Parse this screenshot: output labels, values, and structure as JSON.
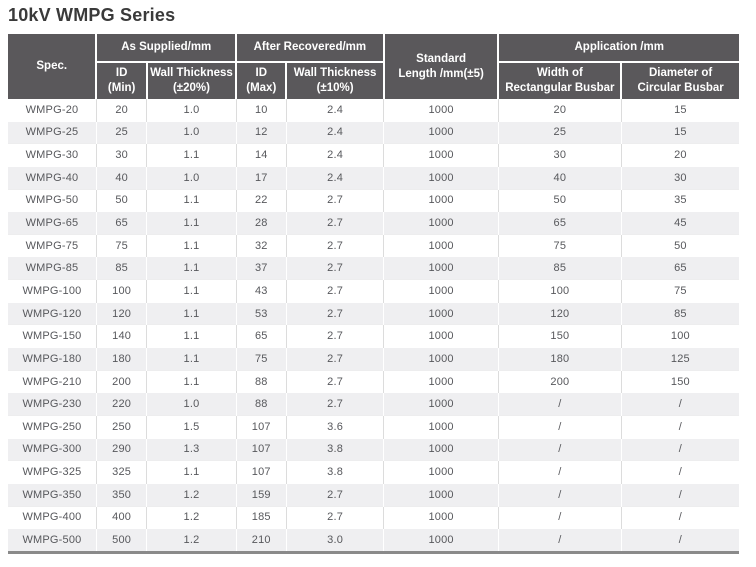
{
  "page": {
    "title": "10kV WMPG Series"
  },
  "colors": {
    "header_bg": "#5a585b",
    "header_text": "#ffffff",
    "row_alt_bg": "#efeff1",
    "row_bg": "#ffffff",
    "cell_text": "#57585c",
    "title_text": "#3a3a3a",
    "bottom_border": "#8a8a8a"
  },
  "table": {
    "header": {
      "spec": "Spec.",
      "as_supplied_group": "As Supplied/mm",
      "after_recovered_group": "After Recovered/mm",
      "standard_length": "Standard\nLength /mm(±5)",
      "application_group": "Application /mm",
      "id_min": "ID\n(Min)",
      "wall_thickness_20": "Wall Thickness\n(±20%)",
      "id_max": "ID\n(Max)",
      "wall_thickness_10": "Wall Thickness\n(±10%)",
      "width_rect_busbar": "Width of\nRectangular Busbar",
      "dia_circ_busbar": "Diameter of\nCircular Busbar"
    },
    "rows": [
      [
        "WMPG-20",
        "20",
        "1.0",
        "10",
        "2.4",
        "1000",
        "20",
        "15"
      ],
      [
        "WMPG-25",
        "25",
        "1.0",
        "12",
        "2.4",
        "1000",
        "25",
        "15"
      ],
      [
        "WMPG-30",
        "30",
        "1.1",
        "14",
        "2.4",
        "1000",
        "30",
        "20"
      ],
      [
        "WMPG-40",
        "40",
        "1.0",
        "17",
        "2.4",
        "1000",
        "40",
        "30"
      ],
      [
        "WMPG-50",
        "50",
        "1.1",
        "22",
        "2.7",
        "1000",
        "50",
        "35"
      ],
      [
        "WMPG-65",
        "65",
        "1.1",
        "28",
        "2.7",
        "1000",
        "65",
        "45"
      ],
      [
        "WMPG-75",
        "75",
        "1.1",
        "32",
        "2.7",
        "1000",
        "75",
        "50"
      ],
      [
        "WMPG-85",
        "85",
        "1.1",
        "37",
        "2.7",
        "1000",
        "85",
        "65"
      ],
      [
        "WMPG-100",
        "100",
        "1.1",
        "43",
        "2.7",
        "1000",
        "100",
        "75"
      ],
      [
        "WMPG-120",
        "120",
        "1.1",
        "53",
        "2.7",
        "1000",
        "120",
        "85"
      ],
      [
        "WMPG-150",
        "140",
        "1.1",
        "65",
        "2.7",
        "1000",
        "150",
        "100"
      ],
      [
        "WMPG-180",
        "180",
        "1.1",
        "75",
        "2.7",
        "1000",
        "180",
        "125"
      ],
      [
        "WMPG-210",
        "200",
        "1.1",
        "88",
        "2.7",
        "1000",
        "200",
        "150"
      ],
      [
        "WMPG-230",
        "220",
        "1.0",
        "88",
        "2.7",
        "1000",
        "/",
        "/"
      ],
      [
        "WMPG-250",
        "250",
        "1.5",
        "107",
        "3.6",
        "1000",
        "/",
        "/"
      ],
      [
        "WMPG-300",
        "290",
        "1.3",
        "107",
        "3.8",
        "1000",
        "/",
        "/"
      ],
      [
        "WMPG-325",
        "325",
        "1.1",
        "107",
        "3.8",
        "1000",
        "/",
        "/"
      ],
      [
        "WMPG-350",
        "350",
        "1.2",
        "159",
        "2.7",
        "1000",
        "/",
        "/"
      ],
      [
        "WMPG-400",
        "400",
        "1.2",
        "185",
        "2.7",
        "1000",
        "/",
        "/"
      ],
      [
        "WMPG-500",
        "500",
        "1.2",
        "210",
        "3.0",
        "1000",
        "/",
        "/"
      ]
    ]
  }
}
